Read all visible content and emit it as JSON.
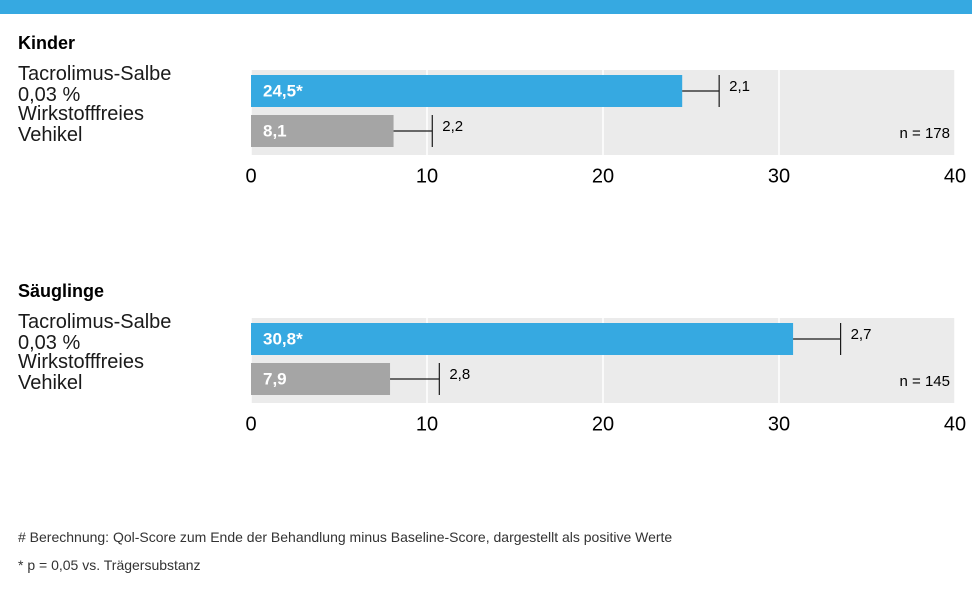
{
  "chart_data": [
    {
      "type": "bar",
      "orientation": "horizontal",
      "title": "Kinder",
      "categories": [
        "Tacrolimus-Salbe 0,03 %",
        "Wirkstofffreies Vehikel"
      ],
      "values": [
        24.5,
        8.1
      ],
      "value_labels": [
        "24,5*",
        "8,1"
      ],
      "errors": [
        2.1,
        2.2
      ],
      "error_labels": [
        "2,1",
        "2,2"
      ],
      "colors": [
        "#36a9e1",
        "#a5a5a5"
      ],
      "annotation": "n = 178",
      "xlim": [
        0,
        40
      ],
      "xticks": [
        0,
        10,
        20,
        30,
        40
      ],
      "grid": true
    },
    {
      "type": "bar",
      "orientation": "horizontal",
      "title": "Säuglinge",
      "categories": [
        "Tacrolimus-Salbe 0,03 %",
        "Wirkstofffreies Vehikel"
      ],
      "values": [
        30.8,
        7.9
      ],
      "value_labels": [
        "30,8*",
        "7,9"
      ],
      "errors": [
        2.7,
        2.8
      ],
      "error_labels": [
        "2,7",
        "2,8"
      ],
      "colors": [
        "#36a9e1",
        "#a5a5a5"
      ],
      "annotation": "n = 145",
      "xlim": [
        0,
        40
      ],
      "xticks": [
        0,
        10,
        20,
        30,
        40
      ],
      "grid": true
    }
  ],
  "footnotes": [
    "# Berechnung: Qol-Score zum Ende der Behandlung minus Baseline-Score, dargestellt als positive Werte",
    "* p = 0,05 vs. Trägersubstanz"
  ]
}
